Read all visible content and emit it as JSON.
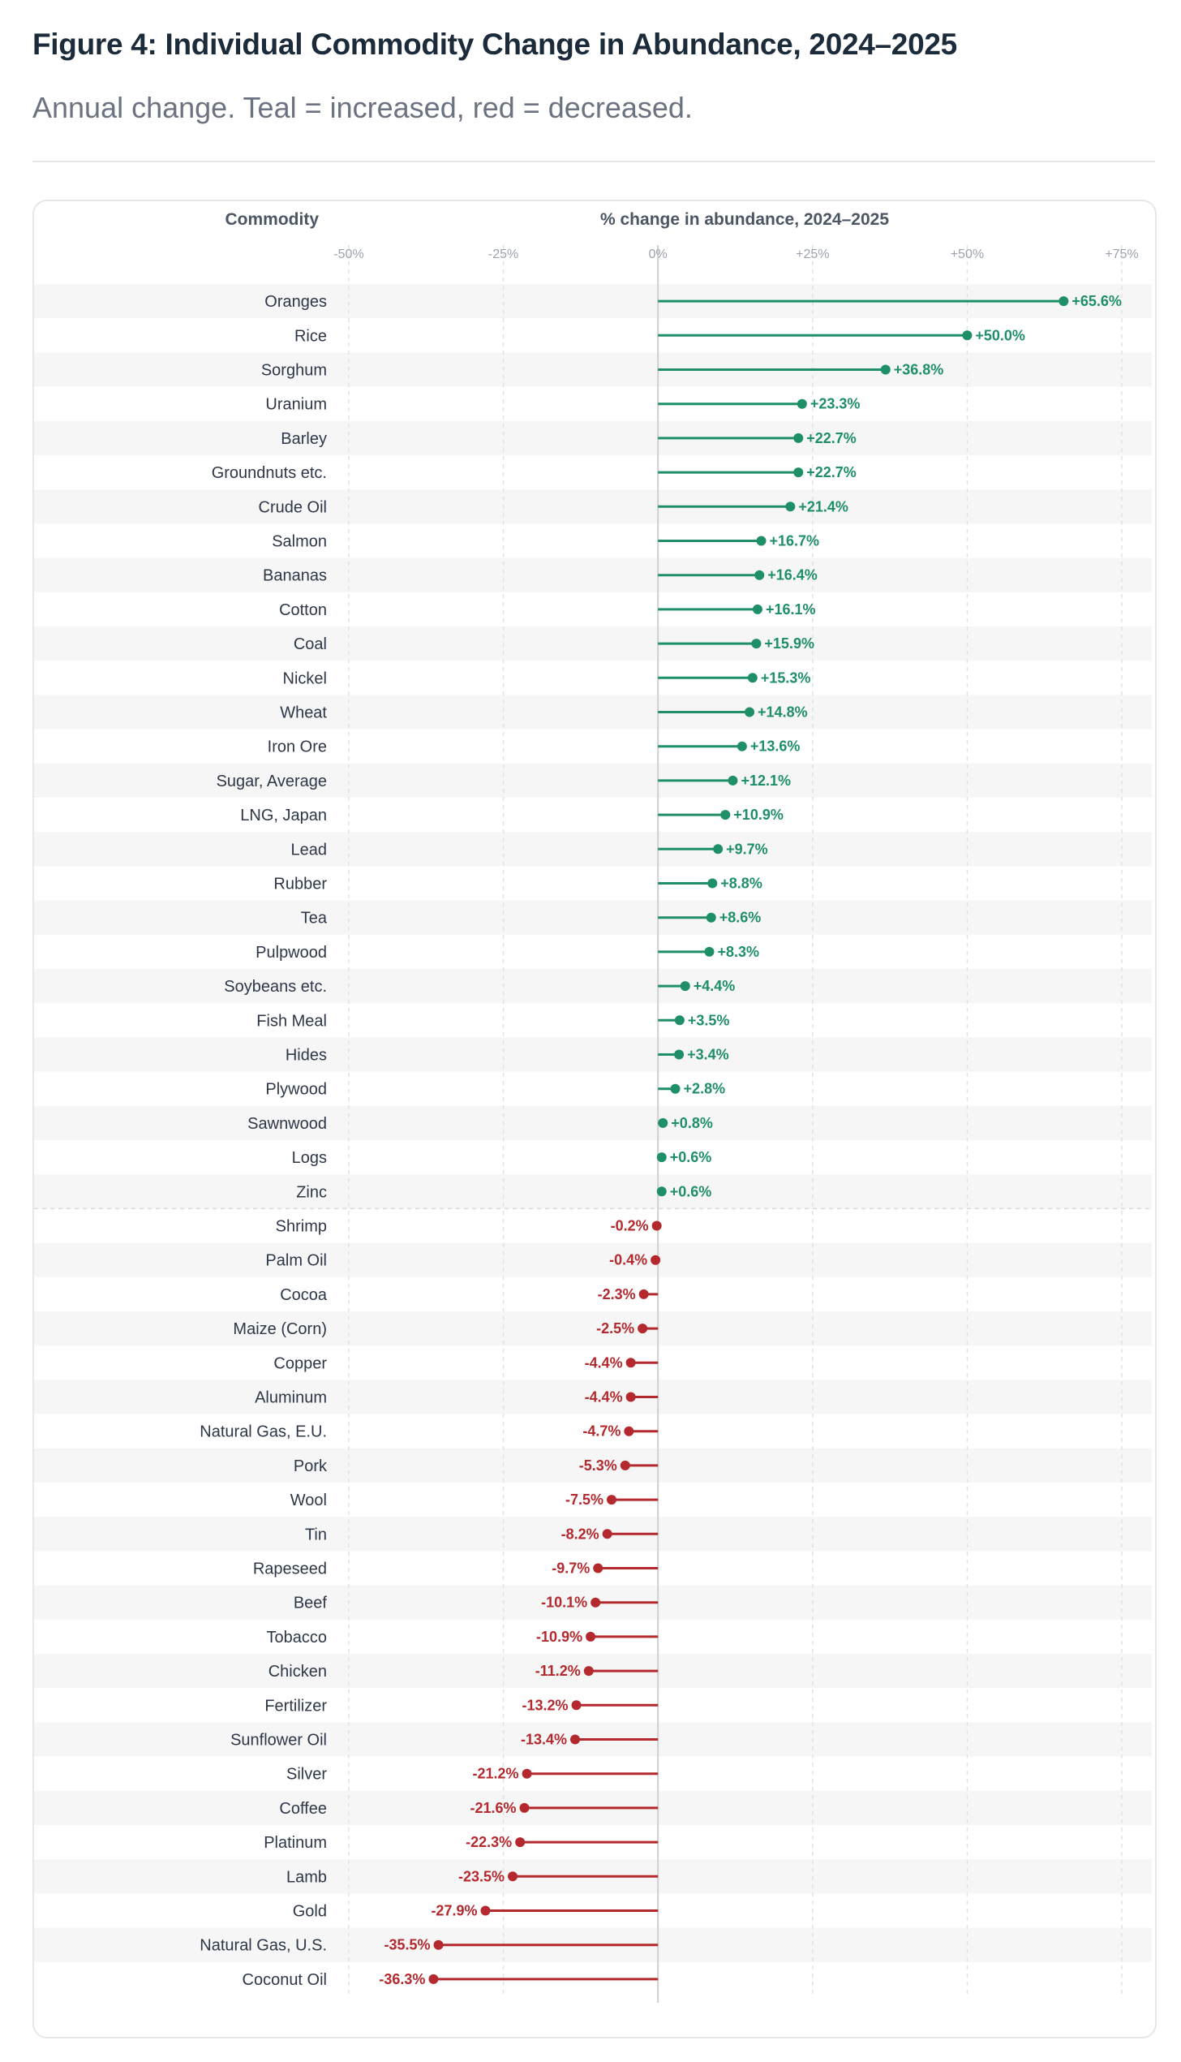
{
  "header": {
    "title": "Figure 4: Individual Commodity Change in Abundance, 2024–2025",
    "subtitle": "Annual change. Teal = increased, red = decreased."
  },
  "colors": {
    "increase": "#1e8f66",
    "decrease": "#b3292e",
    "band": "#f6f6f6",
    "grid": "#e3e3e3"
  },
  "chart_data": {
    "type": "bar",
    "orientation": "horizontal",
    "style": "lollipop",
    "category_header": "Commodity",
    "xlabel": "% change in abundance, 2024–2025",
    "xlim": [
      -50,
      75
    ],
    "xticks": [
      -50,
      -25,
      0,
      25,
      50,
      75
    ],
    "xtick_labels": [
      "-50%",
      "-25%",
      "0%",
      "+25%",
      "+50%",
      "+75%"
    ],
    "grid": true,
    "categories": [
      "Oranges",
      "Rice",
      "Sorghum",
      "Uranium",
      "Barley",
      "Groundnuts etc.",
      "Crude Oil",
      "Salmon",
      "Bananas",
      "Cotton",
      "Coal",
      "Nickel",
      "Wheat",
      "Iron Ore",
      "Sugar, Average",
      "LNG, Japan",
      "Lead",
      "Rubber",
      "Tea",
      "Pulpwood",
      "Soybeans etc.",
      "Fish Meal",
      "Hides",
      "Plywood",
      "Sawnwood",
      "Logs",
      "Zinc",
      "Shrimp",
      "Palm Oil",
      "Cocoa",
      "Maize (Corn)",
      "Copper",
      "Aluminum",
      "Natural Gas, E.U.",
      "Pork",
      "Wool",
      "Tin",
      "Rapeseed",
      "Beef",
      "Tobacco",
      "Chicken",
      "Fertilizer",
      "Sunflower Oil",
      "Silver",
      "Coffee",
      "Platinum",
      "Lamb",
      "Gold",
      "Natural Gas, U.S.",
      "Coconut Oil"
    ],
    "values": [
      65.6,
      50.0,
      36.8,
      23.3,
      22.7,
      22.7,
      21.4,
      16.7,
      16.4,
      16.1,
      15.9,
      15.3,
      14.8,
      13.6,
      12.1,
      10.9,
      9.7,
      8.8,
      8.6,
      8.3,
      4.4,
      3.5,
      3.4,
      2.8,
      0.8,
      0.6,
      0.6,
      -0.2,
      -0.4,
      -2.3,
      -2.5,
      -4.4,
      -4.4,
      -4.7,
      -5.3,
      -7.5,
      -8.2,
      -9.7,
      -10.1,
      -10.9,
      -11.2,
      -13.2,
      -13.4,
      -21.2,
      -21.6,
      -22.3,
      -23.5,
      -27.9,
      -35.5,
      -36.3
    ],
    "value_labels": [
      "+65.6%",
      "+50.0%",
      "+36.8%",
      "+23.3%",
      "+22.7%",
      "+22.7%",
      "+21.4%",
      "+16.7%",
      "+16.4%",
      "+16.1%",
      "+15.9%",
      "+15.3%",
      "+14.8%",
      "+13.6%",
      "+12.1%",
      "+10.9%",
      "+9.7%",
      "+8.8%",
      "+8.6%",
      "+8.3%",
      "+4.4%",
      "+3.5%",
      "+3.4%",
      "+2.8%",
      "+0.8%",
      "+0.6%",
      "+0.6%",
      "-0.2%",
      "-0.4%",
      "-2.3%",
      "-2.5%",
      "-4.4%",
      "-4.4%",
      "-4.7%",
      "-5.3%",
      "-7.5%",
      "-8.2%",
      "-9.7%",
      "-10.1%",
      "-10.9%",
      "-11.2%",
      "-13.2%",
      "-13.4%",
      "-21.2%",
      "-21.6%",
      "-22.3%",
      "-23.5%",
      "-27.9%",
      "-35.5%",
      "-36.3%"
    ]
  }
}
